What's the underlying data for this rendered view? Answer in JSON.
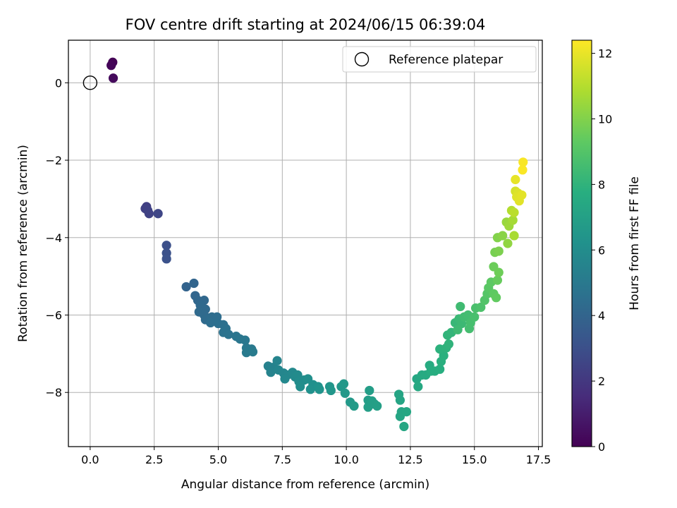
{
  "chart_data": {
    "type": "scatter",
    "title": "FOV centre drift starting at 2024/06/15 06:39:04",
    "xlabel": "Angular distance from reference (arcmin)",
    "ylabel": "Rotation from reference (arcmin)",
    "colorbar_label": "Hours from first FF file",
    "xlim": [
      -0.85,
      17.65
    ],
    "ylim": [
      -9.4,
      1.1
    ],
    "clim": [
      0,
      12.4
    ],
    "grid": true,
    "colormap": "viridis",
    "x_ticks": [
      "0.0",
      "2.5",
      "5.0",
      "7.5",
      "10.0",
      "12.5",
      "15.0",
      "17.5"
    ],
    "x_tick_values": [
      0,
      2.5,
      5,
      7.5,
      10,
      12.5,
      15,
      17.5
    ],
    "y_ticks": [
      "0",
      "−2",
      "−4",
      "−6",
      "−8"
    ],
    "y_tick_values": [
      0,
      -2,
      -4,
      -6,
      -8
    ],
    "colorbar_ticks": [
      "0",
      "2",
      "4",
      "6",
      "8",
      "10",
      "12"
    ],
    "colorbar_tick_values": [
      0,
      2,
      4,
      6,
      8,
      10,
      12
    ],
    "legend": {
      "position": "upper-right",
      "label": "Reference platepar",
      "marker": "open-circle"
    },
    "reference_point": {
      "x": 0,
      "y": 0
    },
    "points": [
      {
        "x": 0.88,
        "y": 0.53,
        "t": 0.05
      },
      {
        "x": 0.82,
        "y": 0.45,
        "t": 0.15
      },
      {
        "x": 0.9,
        "y": 0.12,
        "t": 0.3
      },
      {
        "x": 2.2,
        "y": -3.2,
        "t": 2.3
      },
      {
        "x": 2.15,
        "y": -3.25,
        "t": 2.35
      },
      {
        "x": 2.25,
        "y": -3.3,
        "t": 2.4
      },
      {
        "x": 2.3,
        "y": -3.38,
        "t": 2.45
      },
      {
        "x": 2.65,
        "y": -3.38,
        "t": 2.6
      },
      {
        "x": 2.98,
        "y": -4.2,
        "t": 3.0
      },
      {
        "x": 2.98,
        "y": -4.4,
        "t": 3.05
      },
      {
        "x": 2.98,
        "y": -4.55,
        "t": 3.1
      },
      {
        "x": 3.75,
        "y": -5.27,
        "t": 3.9
      },
      {
        "x": 4.05,
        "y": -5.18,
        "t": 4.0
      },
      {
        "x": 4.1,
        "y": -5.5,
        "t": 4.05
      },
      {
        "x": 4.2,
        "y": -5.62,
        "t": 4.1
      },
      {
        "x": 4.45,
        "y": -5.62,
        "t": 4.15
      },
      {
        "x": 4.3,
        "y": -5.75,
        "t": 4.2
      },
      {
        "x": 4.5,
        "y": -5.85,
        "t": 4.22
      },
      {
        "x": 4.25,
        "y": -5.92,
        "t": 4.25
      },
      {
        "x": 4.45,
        "y": -6.0,
        "t": 4.28
      },
      {
        "x": 4.5,
        "y": -6.12,
        "t": 4.3
      },
      {
        "x": 4.75,
        "y": -6.05,
        "t": 4.35
      },
      {
        "x": 4.95,
        "y": -6.05,
        "t": 4.4
      },
      {
        "x": 4.7,
        "y": -6.2,
        "t": 4.45
      },
      {
        "x": 5.0,
        "y": -6.22,
        "t": 4.5
      },
      {
        "x": 5.2,
        "y": -6.25,
        "t": 4.55
      },
      {
        "x": 5.3,
        "y": -6.35,
        "t": 4.6
      },
      {
        "x": 5.2,
        "y": -6.45,
        "t": 4.65
      },
      {
        "x": 5.4,
        "y": -6.5,
        "t": 4.7
      },
      {
        "x": 5.7,
        "y": -6.55,
        "t": 4.8
      },
      {
        "x": 5.85,
        "y": -6.62,
        "t": 4.85
      },
      {
        "x": 6.05,
        "y": -6.65,
        "t": 4.9
      },
      {
        "x": 6.1,
        "y": -6.85,
        "t": 4.95
      },
      {
        "x": 6.3,
        "y": -6.88,
        "t": 5.0
      },
      {
        "x": 6.1,
        "y": -6.97,
        "t": 5.05
      },
      {
        "x": 6.35,
        "y": -6.95,
        "t": 5.1
      },
      {
        "x": 6.95,
        "y": -7.32,
        "t": 5.4
      },
      {
        "x": 7.15,
        "y": -7.35,
        "t": 5.45
      },
      {
        "x": 7.05,
        "y": -7.48,
        "t": 5.5
      },
      {
        "x": 7.3,
        "y": -7.18,
        "t": 5.55
      },
      {
        "x": 7.35,
        "y": -7.42,
        "t": 5.6
      },
      {
        "x": 7.55,
        "y": -7.5,
        "t": 5.65
      },
      {
        "x": 7.7,
        "y": -7.55,
        "t": 5.7
      },
      {
        "x": 7.6,
        "y": -7.65,
        "t": 5.75
      },
      {
        "x": 7.9,
        "y": -7.48,
        "t": 5.8
      },
      {
        "x": 8.0,
        "y": -7.6,
        "t": 5.85
      },
      {
        "x": 8.1,
        "y": -7.55,
        "t": 5.9
      },
      {
        "x": 8.15,
        "y": -7.72,
        "t": 5.95
      },
      {
        "x": 8.35,
        "y": -7.68,
        "t": 6.0
      },
      {
        "x": 8.2,
        "y": -7.85,
        "t": 6.05
      },
      {
        "x": 8.5,
        "y": -7.65,
        "t": 6.1
      },
      {
        "x": 8.7,
        "y": -7.8,
        "t": 6.15
      },
      {
        "x": 8.6,
        "y": -7.92,
        "t": 6.2
      },
      {
        "x": 8.9,
        "y": -7.85,
        "t": 6.25
      },
      {
        "x": 8.95,
        "y": -7.92,
        "t": 6.3
      },
      {
        "x": 9.35,
        "y": -7.85,
        "t": 6.4
      },
      {
        "x": 9.4,
        "y": -7.95,
        "t": 6.45
      },
      {
        "x": 9.8,
        "y": -7.85,
        "t": 6.5
      },
      {
        "x": 9.9,
        "y": -7.78,
        "t": 6.55
      },
      {
        "x": 9.95,
        "y": -8.02,
        "t": 6.6
      },
      {
        "x": 10.15,
        "y": -8.25,
        "t": 6.65
      },
      {
        "x": 10.3,
        "y": -8.35,
        "t": 6.7
      },
      {
        "x": 10.85,
        "y": -8.2,
        "t": 6.8
      },
      {
        "x": 10.9,
        "y": -7.95,
        "t": 6.82
      },
      {
        "x": 10.95,
        "y": -8.3,
        "t": 6.85
      },
      {
        "x": 10.85,
        "y": -8.38,
        "t": 6.88
      },
      {
        "x": 11.0,
        "y": -8.22,
        "t": 6.9
      },
      {
        "x": 11.1,
        "y": -8.3,
        "t": 6.92
      },
      {
        "x": 11.2,
        "y": -8.35,
        "t": 6.95
      },
      {
        "x": 12.05,
        "y": -8.05,
        "t": 7.2
      },
      {
        "x": 12.1,
        "y": -8.2,
        "t": 7.22
      },
      {
        "x": 12.15,
        "y": -8.5,
        "t": 7.25
      },
      {
        "x": 12.1,
        "y": -8.62,
        "t": 7.28
      },
      {
        "x": 12.35,
        "y": -8.5,
        "t": 7.3
      },
      {
        "x": 12.25,
        "y": -8.88,
        "t": 7.32
      },
      {
        "x": 12.75,
        "y": -7.65,
        "t": 7.4
      },
      {
        "x": 12.8,
        "y": -7.85,
        "t": 7.45
      },
      {
        "x": 12.95,
        "y": -7.55,
        "t": 7.5
      },
      {
        "x": 13.1,
        "y": -7.55,
        "t": 7.55
      },
      {
        "x": 13.25,
        "y": -7.3,
        "t": 7.6
      },
      {
        "x": 13.3,
        "y": -7.45,
        "t": 7.65
      },
      {
        "x": 13.45,
        "y": -7.45,
        "t": 7.7
      },
      {
        "x": 13.65,
        "y": -7.4,
        "t": 7.75
      },
      {
        "x": 13.7,
        "y": -7.2,
        "t": 7.8
      },
      {
        "x": 13.8,
        "y": -7.05,
        "t": 7.85
      },
      {
        "x": 13.65,
        "y": -6.88,
        "t": 7.9
      },
      {
        "x": 13.9,
        "y": -6.85,
        "t": 7.95
      },
      {
        "x": 14.0,
        "y": -6.75,
        "t": 8.0
      },
      {
        "x": 13.95,
        "y": -6.52,
        "t": 8.05
      },
      {
        "x": 14.1,
        "y": -6.45,
        "t": 8.1
      },
      {
        "x": 14.25,
        "y": -6.2,
        "t": 8.2
      },
      {
        "x": 14.4,
        "y": -6.1,
        "t": 8.3
      },
      {
        "x": 14.5,
        "y": -6.22,
        "t": 8.35
      },
      {
        "x": 14.35,
        "y": -6.38,
        "t": 8.4
      },
      {
        "x": 14.45,
        "y": -5.78,
        "t": 8.45
      },
      {
        "x": 14.6,
        "y": -6.05,
        "t": 8.5
      },
      {
        "x": 14.75,
        "y": -6.0,
        "t": 8.55
      },
      {
        "x": 14.8,
        "y": -6.35,
        "t": 8.6
      },
      {
        "x": 14.85,
        "y": -6.2,
        "t": 8.65
      },
      {
        "x": 15.0,
        "y": -6.05,
        "t": 8.7
      },
      {
        "x": 15.05,
        "y": -5.82,
        "t": 8.75
      },
      {
        "x": 15.25,
        "y": -5.8,
        "t": 8.85
      },
      {
        "x": 15.4,
        "y": -5.62,
        "t": 8.95
      },
      {
        "x": 15.5,
        "y": -5.45,
        "t": 9.05
      },
      {
        "x": 15.55,
        "y": -5.3,
        "t": 9.15
      },
      {
        "x": 15.65,
        "y": -5.15,
        "t": 9.25
      },
      {
        "x": 15.75,
        "y": -5.45,
        "t": 9.3
      },
      {
        "x": 15.85,
        "y": -5.55,
        "t": 9.35
      },
      {
        "x": 15.9,
        "y": -5.1,
        "t": 9.45
      },
      {
        "x": 15.75,
        "y": -4.75,
        "t": 9.55
      },
      {
        "x": 15.95,
        "y": -4.9,
        "t": 9.6
      },
      {
        "x": 15.8,
        "y": -4.38,
        "t": 9.8
      },
      {
        "x": 15.95,
        "y": -4.35,
        "t": 9.9
      },
      {
        "x": 15.9,
        "y": -4.0,
        "t": 10.0
      },
      {
        "x": 16.1,
        "y": -3.95,
        "t": 10.15
      },
      {
        "x": 16.3,
        "y": -4.15,
        "t": 10.3
      },
      {
        "x": 16.25,
        "y": -3.6,
        "t": 10.45
      },
      {
        "x": 16.35,
        "y": -3.7,
        "t": 10.55
      },
      {
        "x": 16.5,
        "y": -3.55,
        "t": 10.7
      },
      {
        "x": 16.55,
        "y": -3.95,
        "t": 10.75
      },
      {
        "x": 16.45,
        "y": -3.3,
        "t": 10.95
      },
      {
        "x": 16.55,
        "y": -3.35,
        "t": 11.1
      },
      {
        "x": 16.6,
        "y": -2.8,
        "t": 11.6
      },
      {
        "x": 16.7,
        "y": -2.85,
        "t": 11.75
      },
      {
        "x": 16.65,
        "y": -2.95,
        "t": 11.8
      },
      {
        "x": 16.75,
        "y": -3.05,
        "t": 11.85
      },
      {
        "x": 16.85,
        "y": -2.9,
        "t": 11.9
      },
      {
        "x": 16.6,
        "y": -2.5,
        "t": 11.95
      },
      {
        "x": 16.9,
        "y": -2.05,
        "t": 12.3
      },
      {
        "x": 16.88,
        "y": -2.25,
        "t": 12.35
      }
    ]
  }
}
